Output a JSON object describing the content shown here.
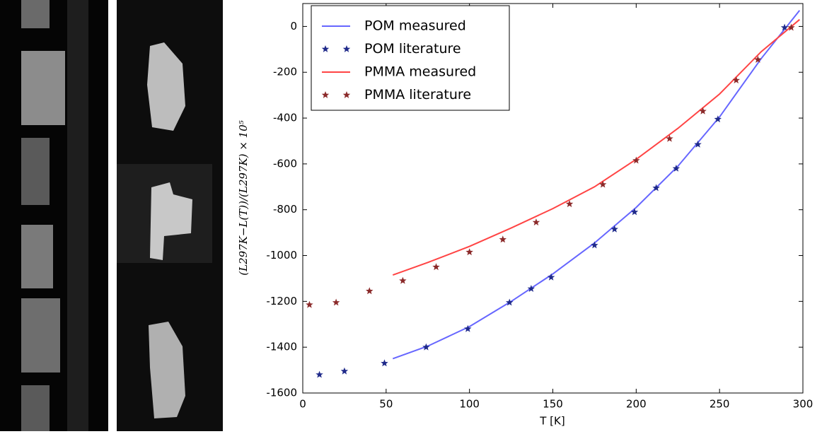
{
  "chart_data": {
    "type": "line",
    "xlabel": "T [K]",
    "ylabel": "(L297K−L(T))/(L297K) × 10⁵",
    "xlim": [
      0,
      300
    ],
    "xticks": [
      0,
      50,
      100,
      150,
      200,
      250,
      300
    ],
    "ylim": [
      -1600,
      100
    ],
    "yticks": [
      -1600,
      -1400,
      -1200,
      -1000,
      -800,
      -600,
      -400,
      -200,
      0
    ],
    "legend": "upper left",
    "series": [
      {
        "name": "POM measured",
        "style": "line",
        "color": "#6666ff",
        "x": [
          54,
          75,
          100,
          125,
          150,
          175,
          200,
          225,
          250,
          275,
          298
        ],
        "values": [
          -1450,
          -1395,
          -1310,
          -1200,
          -1080,
          -945,
          -790,
          -610,
          -395,
          -140,
          70
        ]
      },
      {
        "name": "POM literature",
        "style": "markers",
        "color": "#1f2a8a",
        "x": [
          10,
          25,
          49,
          74,
          99,
          124,
          137,
          149,
          175,
          187,
          199,
          212,
          224,
          237,
          249,
          289
        ],
        "values": [
          -1520,
          -1505,
          -1470,
          -1400,
          -1320,
          -1205,
          -1145,
          -1095,
          -955,
          -885,
          -810,
          -705,
          -620,
          -515,
          -405,
          -5
        ]
      },
      {
        "name": "PMMA measured",
        "style": "line",
        "color": "#ff4444",
        "x": [
          54,
          75,
          100,
          125,
          150,
          175,
          200,
          225,
          250,
          275,
          298
        ],
        "values": [
          -1085,
          -1030,
          -960,
          -880,
          -795,
          -700,
          -580,
          -445,
          -295,
          -110,
          30
        ]
      },
      {
        "name": "PMMA literature",
        "style": "markers",
        "color": "#8b2a2a",
        "x": [
          4,
          20,
          40,
          60,
          80,
          100,
          120,
          140,
          160,
          180,
          200,
          220,
          240,
          260,
          273,
          293
        ],
        "values": [
          -1215,
          -1205,
          -1155,
          -1110,
          -1050,
          -985,
          -930,
          -855,
          -775,
          -690,
          -585,
          -490,
          -370,
          -235,
          -145,
          -5
        ]
      }
    ]
  }
}
